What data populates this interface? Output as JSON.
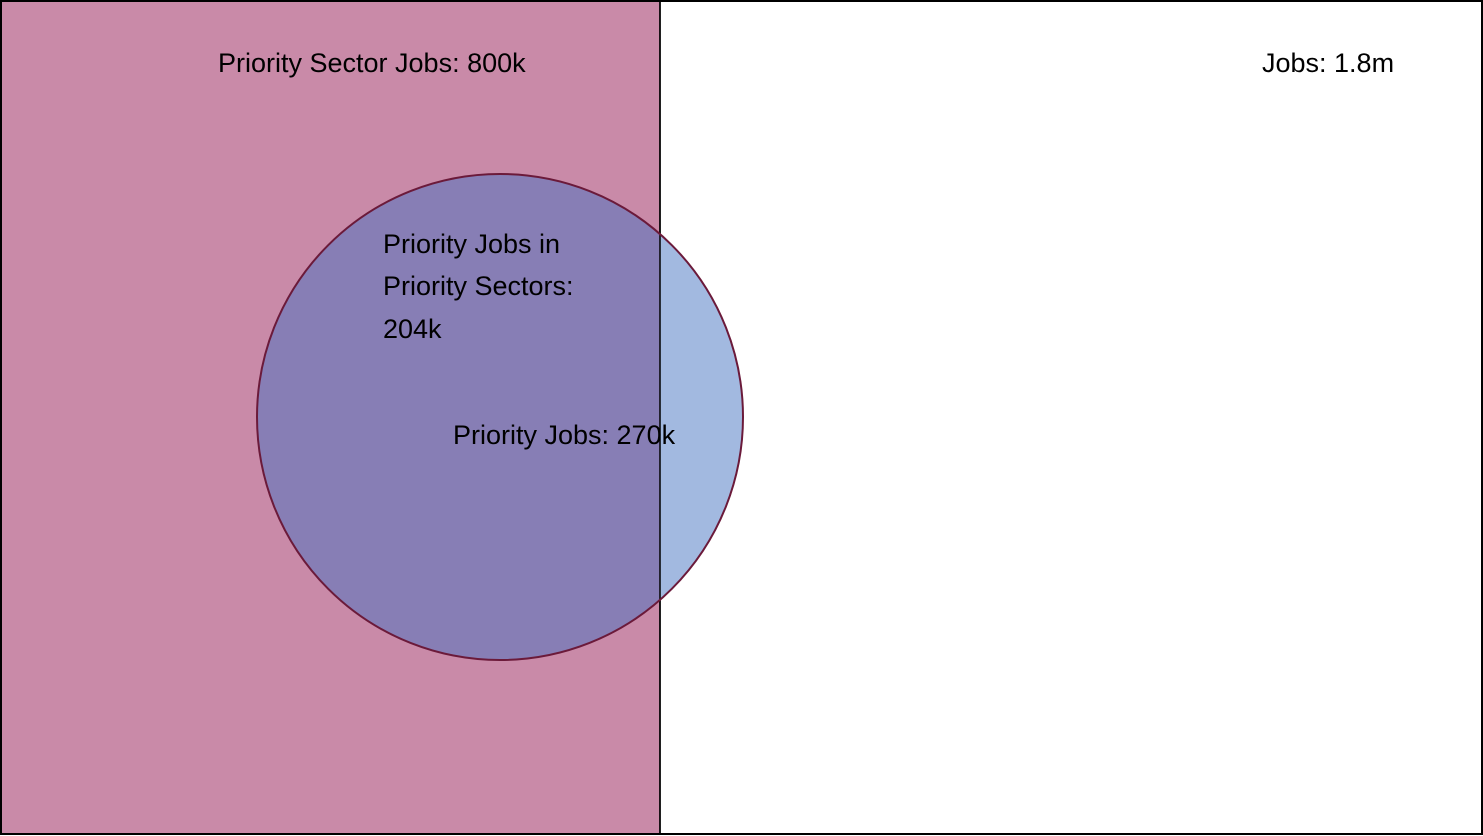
{
  "colors": {
    "background": "#ffffff",
    "outer_border": "#000000",
    "priority_sector_fill": "#c98aa8",
    "priority_jobs_fill": "#a2b9e0",
    "overlap_fill": "#877eb5",
    "circle_stroke": "#6b1a3a"
  },
  "labels": {
    "total_jobs": "Jobs:  1.8m",
    "priority_sector_jobs": "Priority Sector Jobs:  800k",
    "overlap_line1": "Priority Jobs in",
    "overlap_line2": "Priority Sectors:",
    "overlap_line3": "204k",
    "priority_jobs": "Priority Jobs: 270k"
  }
}
